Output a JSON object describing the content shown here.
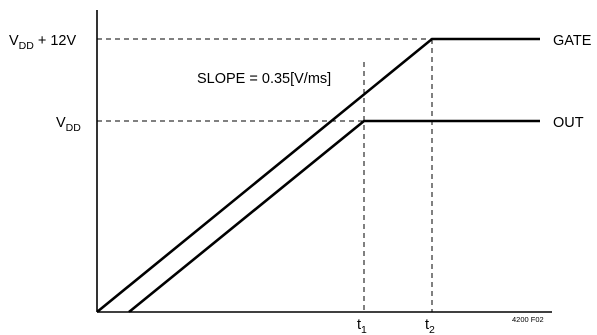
{
  "labels": {
    "vdd_plus_base": "V",
    "vdd_plus_sub": "DD",
    "vdd_plus_suffix": " + 12V",
    "vdd_base": "V",
    "vdd_sub": "DD",
    "slope": "SLOPE = 0.35[V/ms]",
    "gate": "GATE",
    "out": "OUT",
    "t1_base": "t",
    "t1_sub": "1",
    "t2_base": "t",
    "t2_sub": "2",
    "figure_id": "4200 F02"
  },
  "colors": {
    "line": "#000000",
    "background": "#ffffff"
  }
}
